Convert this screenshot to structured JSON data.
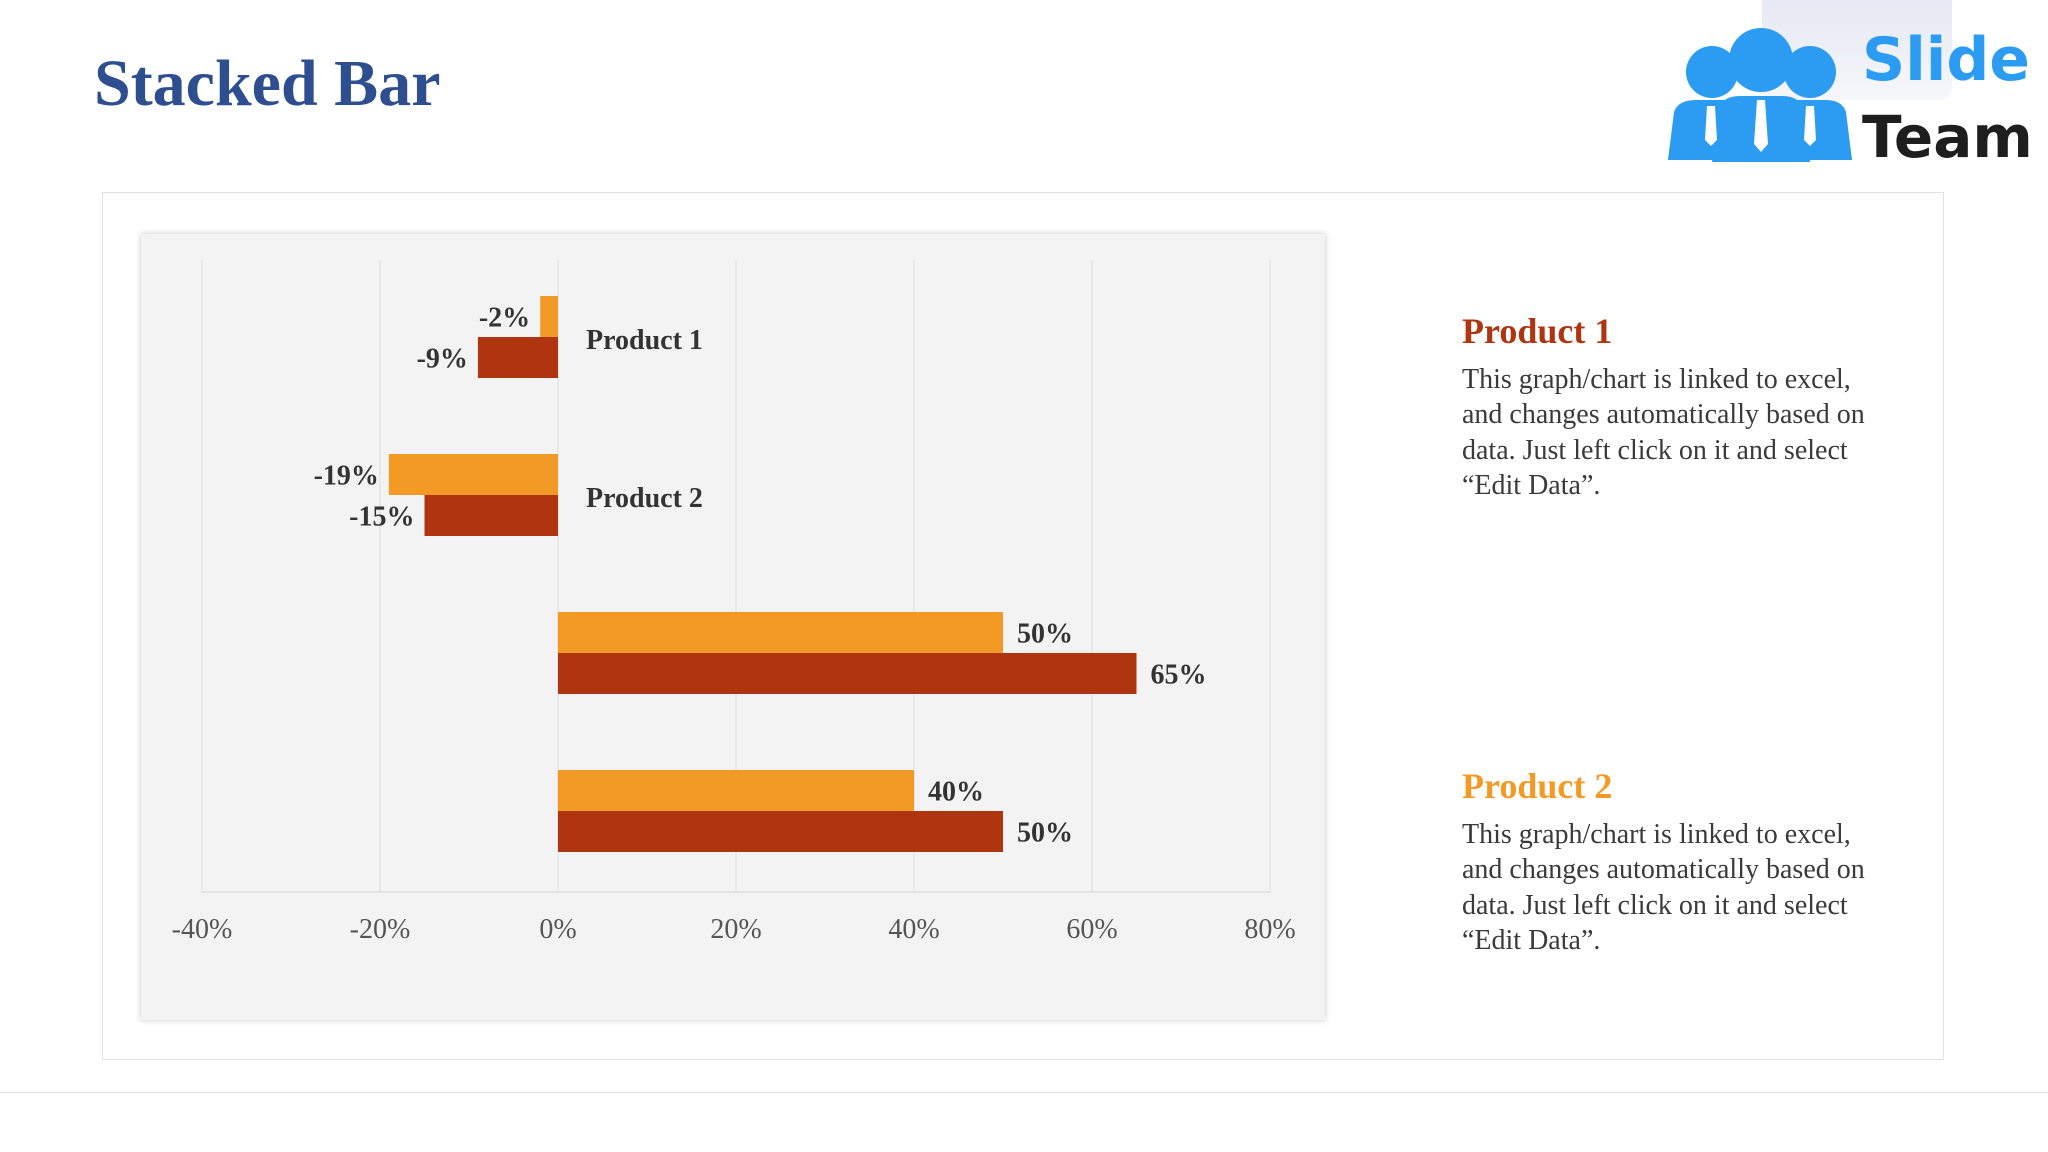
{
  "slide": {
    "title": "Stacked Bar"
  },
  "logo": {
    "word1": "Slide",
    "word2": "Team"
  },
  "colors": {
    "series_a": "#f39a26",
    "series_b": "#ae3510",
    "title": "#2e4f8f",
    "product1_heading": "#ae3510",
    "product2_heading": "#f39a26"
  },
  "descriptions": [
    {
      "heading": "Product 1",
      "text": "This graph/chart is linked to excel, and changes automatically based on data. Just left click on it and select “Edit Data”."
    },
    {
      "heading": "Product 2",
      "text": "This graph/chart is linked to excel, and changes automatically based on data. Just left click on it and select “Edit Data”."
    }
  ],
  "chart_data": {
    "type": "bar",
    "orientation": "horizontal",
    "title": "",
    "xlabel": "",
    "ylabel": "",
    "xlim": [
      -40,
      80
    ],
    "xticks": [
      -40,
      -20,
      0,
      20,
      40,
      60,
      80
    ],
    "tick_suffix": "%",
    "grid": true,
    "legend": "none",
    "categories": [
      "Product 1",
      "Product 2",
      "",
      ""
    ],
    "series": [
      {
        "values": [
          -2,
          -19,
          50,
          40
        ],
        "labels": [
          "-2%",
          "-19%",
          "50%",
          "40%"
        ]
      },
      {
        "values": [
          -9,
          -15,
          65,
          50
        ],
        "labels": [
          "-9%",
          "-15%",
          "65%",
          "50%"
        ]
      }
    ]
  }
}
